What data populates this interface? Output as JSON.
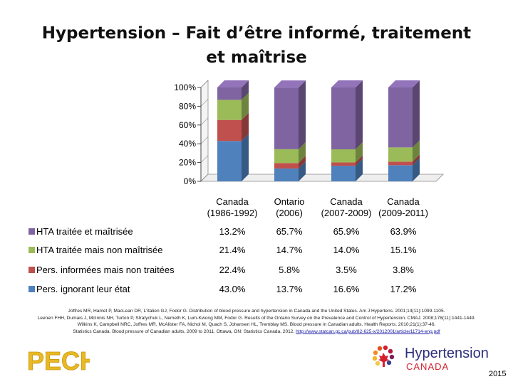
{
  "title": {
    "line1": "Hypertension – Fait d’être informé, traitement",
    "line2": "et maîtrise"
  },
  "chart_data": {
    "type": "bar",
    "stacked": true,
    "percent_stacked": true,
    "y_ticks": [
      "0%",
      "20%",
      "40%",
      "60%",
      "80%",
      "100%"
    ],
    "ylim": [
      0,
      100
    ],
    "categories": [
      "Canada (1986-1992)",
      "Ontario (2006)",
      "Canada (2007-2009)",
      "Canada (2009-2011)"
    ],
    "category_lines": [
      [
        "Canada",
        "(1986-1992)"
      ],
      [
        "Ontario",
        "(2006)"
      ],
      [
        "Canada",
        "(2007-2009)"
      ],
      [
        "Canada",
        "(2009-2011)"
      ]
    ],
    "series": [
      {
        "name": "Pers. ignorant leur état",
        "color": "#4f81bd",
        "values": [
          43.0,
          13.7,
          16.6,
          17.2
        ],
        "labels": [
          "43.0%",
          "13.7%",
          "16.6%",
          "17.2%"
        ]
      },
      {
        "name": "Pers. informées mais non traitées",
        "color": "#c0504d",
        "values": [
          22.4,
          5.8,
          3.5,
          3.8
        ],
        "labels": [
          "22.4%",
          "5.8%",
          "3.5%",
          "3.8%"
        ]
      },
      {
        "name": "HTA traitée mais non maîtrisée",
        "color": "#9bbb59",
        "values": [
          21.4,
          14.7,
          14.0,
          15.1
        ],
        "labels": [
          "21.4%",
          "14.7%",
          "14.0%",
          "15.1%"
        ]
      },
      {
        "name": "HTA traitée et maîtrisée",
        "color": "#8064a2",
        "values": [
          13.2,
          65.7,
          65.9,
          63.9
        ],
        "labels": [
          "13.2%",
          "65.7%",
          "65.9%",
          "63.9%"
        ]
      }
    ],
    "table_row_order": [
      3,
      2,
      1,
      0
    ],
    "legend": "data-table-left",
    "grid": false
  },
  "references": [
    "Joffres MR, Hamet P, MacLean DR, L'italien GJ, Fodor G. Distribution of blood pressure and hypertension in Canada and the United States. Am J Hypertens. 2001;14(11):1099-1105.",
    "Leenen FHH, Dumais J, McInnis NH, Turton P, Stratychuk L, Nemeth K, Lum-Kwong MM, Fodor G. Results of the Ontario Survey on the Prevalence and Control of Hypertension. CMAJ. 2008;178(11):1441-1449.",
    "Wilkins K, Campbell NRC, Joffres MR, McAlister FA, Nichol M, Quach S, Johansen HL, Tremblay MS. Blood pressure in Canadian adults. Health Reports. 2010;21(1):37-46.",
    "Statistics Canada. Blood pressure of Canadian adults, 2009 to 2011. Ottawa, ON: Statistics Canada, 2012."
  ],
  "reference_link": "http://www.statcan.gc.ca/pub/82-625-x/2012001/article/11714-eng.pdf",
  "logos": {
    "pech": "PECH",
    "htn_name": "Hypertension",
    "htn_country": "CANADA",
    "maple_leaf_icon": "maple-leaf-icon"
  },
  "year": "2015"
}
